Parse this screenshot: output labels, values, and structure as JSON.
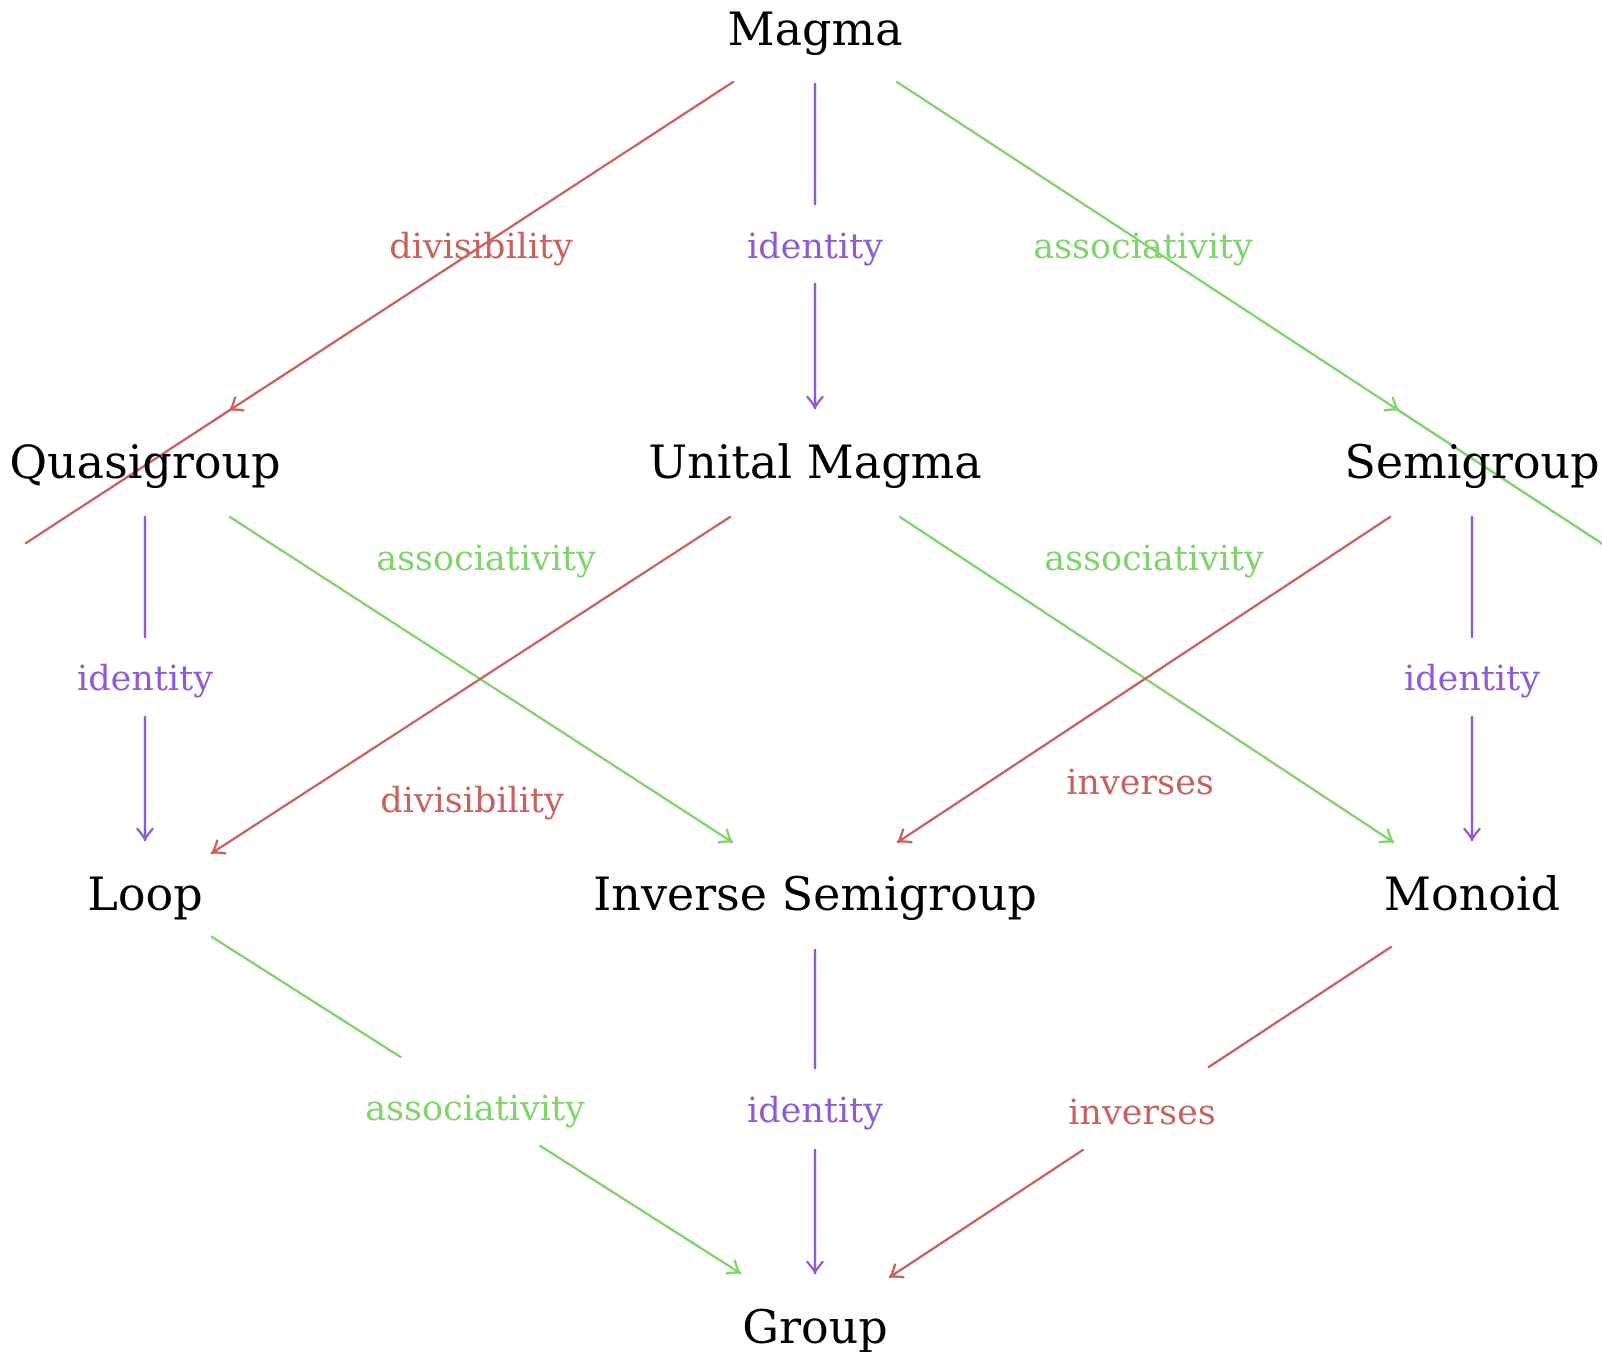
{
  "colors": {
    "divisibility": "#c8625e",
    "identity": "#8f5bd4",
    "associativity": "#7fd46a",
    "inverses": "#c8625e",
    "node": "#000000",
    "background": "#ffffff"
  },
  "nodes": {
    "magma": "Magma",
    "quasigroup": "Quasigroup",
    "unital_magma": "Unital Magma",
    "semigroup": "Semigroup",
    "loop": "Loop",
    "inverse_semigroup": "Inverse Semigroup",
    "monoid": "Monoid",
    "group": "Group"
  },
  "edges": [
    {
      "id": "magma-quasigroup",
      "from": "Magma",
      "to": "Quasigroup",
      "label": "divisibility",
      "kind": "divisibility"
    },
    {
      "id": "magma-unital-magma",
      "from": "Magma",
      "to": "Unital Magma",
      "label": "identity",
      "kind": "identity"
    },
    {
      "id": "magma-semigroup",
      "from": "Magma",
      "to": "Semigroup",
      "label": "associativity",
      "kind": "associativity"
    },
    {
      "id": "quasigroup-loop",
      "from": "Quasigroup",
      "to": "Loop",
      "label": "identity",
      "kind": "identity"
    },
    {
      "id": "quasigroup-inverse-semigroup",
      "from": "Quasigroup",
      "to": "Inverse Semigroup",
      "label": "associativity",
      "kind": "associativity"
    },
    {
      "id": "unital-magma-loop",
      "from": "Unital Magma",
      "to": "Loop",
      "label": "divisibility",
      "kind": "divisibility"
    },
    {
      "id": "unital-magma-monoid",
      "from": "Unital Magma",
      "to": "Monoid",
      "label": "associativity",
      "kind": "associativity"
    },
    {
      "id": "semigroup-inverse-semigroup",
      "from": "Semigroup",
      "to": "Inverse Semigroup",
      "label": "inverses",
      "kind": "inverses"
    },
    {
      "id": "semigroup-monoid",
      "from": "Semigroup",
      "to": "Monoid",
      "label": "identity",
      "kind": "identity"
    },
    {
      "id": "loop-group",
      "from": "Loop",
      "to": "Group",
      "label": "associativity",
      "kind": "associativity"
    },
    {
      "id": "inverse-semigroup-group",
      "from": "Inverse Semigroup",
      "to": "Group",
      "label": "identity",
      "kind": "identity"
    },
    {
      "id": "monoid-group",
      "from": "Monoid",
      "to": "Group",
      "label": "inverses",
      "kind": "inverses"
    }
  ]
}
